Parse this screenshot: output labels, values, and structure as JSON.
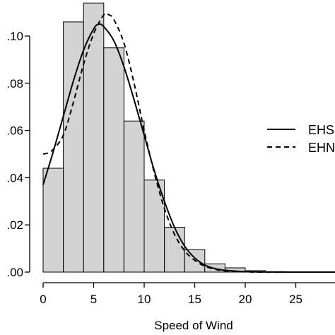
{
  "chart_data": {
    "type": "bar",
    "xlabel": "Speed of Wind",
    "ylabel": "",
    "xlim": [
      0,
      29
    ],
    "ylim": [
      0,
      0.11
    ],
    "x_ticks": [
      0,
      5,
      10,
      15,
      20,
      25
    ],
    "x_tick_labels": [
      "0",
      "5",
      "10",
      "15",
      "20",
      "25"
    ],
    "y_ticks": [
      0.0,
      0.02,
      0.04,
      0.06,
      0.08,
      0.1
    ],
    "y_tick_labels": [
      ".00",
      ".02",
      ".04",
      ".06",
      ".08",
      ".10"
    ],
    "histogram": {
      "bin_edges": [
        0,
        2,
        4,
        6,
        8,
        10,
        12,
        14,
        16,
        18,
        20,
        22,
        24,
        26,
        28
      ],
      "densities": [
        0.044,
        0.106,
        0.114,
        0.095,
        0.064,
        0.039,
        0.019,
        0.0095,
        0.0035,
        0.0018,
        0.0006,
        0.0002,
        0.0001,
        0.0001
      ],
      "fill": "#d3d3d3",
      "stroke": "#000000"
    },
    "series": [
      {
        "name": "EHS",
        "style": "solid",
        "x": [
          0,
          1,
          2,
          3,
          4,
          5,
          5.5,
          6,
          7,
          8,
          9,
          10,
          11,
          12,
          13,
          14,
          15,
          16,
          17,
          18,
          20,
          22,
          25,
          29
        ],
        "y": [
          0.037,
          0.051,
          0.066,
          0.081,
          0.094,
          0.103,
          0.105,
          0.104,
          0.098,
          0.087,
          0.073,
          0.058,
          0.043,
          0.03,
          0.019,
          0.011,
          0.006,
          0.003,
          0.0015,
          0.0008,
          0.0002,
          5e-05,
          0.0,
          0.0
        ]
      },
      {
        "name": "EHN",
        "style": "dashed",
        "x": [
          0,
          0.5,
          1,
          2,
          3,
          4,
          5,
          6,
          6.5,
          7,
          8,
          9,
          10,
          11,
          12,
          13,
          14,
          15,
          16,
          17,
          18,
          20,
          22,
          25,
          29
        ],
        "y": [
          0.05,
          0.0505,
          0.052,
          0.058,
          0.072,
          0.088,
          0.101,
          0.109,
          0.109,
          0.107,
          0.097,
          0.08,
          0.06,
          0.042,
          0.027,
          0.016,
          0.009,
          0.005,
          0.0025,
          0.0012,
          0.0005,
          0.0001,
          0.0,
          0.0,
          0.0
        ]
      }
    ],
    "legend_position": "right",
    "grid": false
  }
}
